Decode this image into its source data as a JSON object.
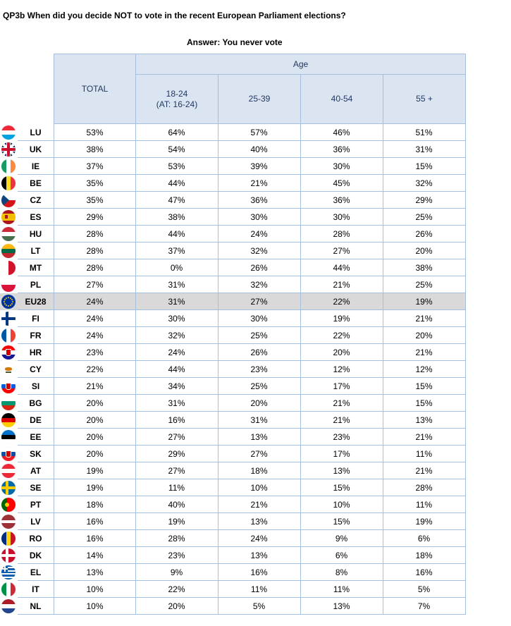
{
  "title": "QP3b When did you decide NOT to vote in the recent European Parliament elections?",
  "subtitle": "Answer: You never vote",
  "header": {
    "age": "Age",
    "total": "TOTAL",
    "cols": [
      "18-24",
      "25-39",
      "40-54",
      "55 +"
    ],
    "col1_sub": "(AT: 16-24)"
  },
  "rows": [
    {
      "code": "LU",
      "flag": "luxembourg-flag-icon",
      "total": "53%",
      "a": "64%",
      "b": "57%",
      "c": "46%",
      "d": "51%"
    },
    {
      "code": "UK",
      "flag": "uk-flag-icon",
      "total": "38%",
      "a": "54%",
      "b": "40%",
      "c": "36%",
      "d": "31%"
    },
    {
      "code": "IE",
      "flag": "ireland-flag-icon",
      "total": "37%",
      "a": "53%",
      "b": "39%",
      "c": "30%",
      "d": "15%"
    },
    {
      "code": "BE",
      "flag": "belgium-flag-icon",
      "total": "35%",
      "a": "44%",
      "b": "21%",
      "c": "45%",
      "d": "32%"
    },
    {
      "code": "CZ",
      "flag": "czech-flag-icon",
      "total": "35%",
      "a": "47%",
      "b": "36%",
      "c": "36%",
      "d": "29%"
    },
    {
      "code": "ES",
      "flag": "spain-flag-icon",
      "total": "29%",
      "a": "38%",
      "b": "30%",
      "c": "30%",
      "d": "25%"
    },
    {
      "code": "HU",
      "flag": "hungary-flag-icon",
      "total": "28%",
      "a": "44%",
      "b": "24%",
      "c": "28%",
      "d": "26%"
    },
    {
      "code": "LT",
      "flag": "lithuania-flag-icon",
      "total": "28%",
      "a": "37%",
      "b": "32%",
      "c": "27%",
      "d": "20%"
    },
    {
      "code": "MT",
      "flag": "malta-flag-icon",
      "total": "28%",
      "a": "0%",
      "b": "26%",
      "c": "44%",
      "d": "38%"
    },
    {
      "code": "PL",
      "flag": "poland-flag-icon",
      "total": "27%",
      "a": "31%",
      "b": "32%",
      "c": "21%",
      "d": "25%"
    },
    {
      "code": "EU28",
      "flag": "eu-flag-icon",
      "total": "24%",
      "a": "31%",
      "b": "27%",
      "c": "22%",
      "d": "19%",
      "highlight": true
    },
    {
      "code": "FI",
      "flag": "finland-flag-icon",
      "total": "24%",
      "a": "30%",
      "b": "30%",
      "c": "19%",
      "d": "21%"
    },
    {
      "code": "FR",
      "flag": "france-flag-icon",
      "total": "24%",
      "a": "32%",
      "b": "25%",
      "c": "22%",
      "d": "20%"
    },
    {
      "code": "HR",
      "flag": "croatia-flag-icon",
      "total": "23%",
      "a": "24%",
      "b": "26%",
      "c": "20%",
      "d": "21%"
    },
    {
      "code": "CY",
      "flag": "cyprus-flag-icon",
      "total": "22%",
      "a": "44%",
      "b": "23%",
      "c": "12%",
      "d": "12%"
    },
    {
      "code": "SI",
      "flag": "slovenia-flag-icon",
      "total": "21%",
      "a": "34%",
      "b": "25%",
      "c": "17%",
      "d": "15%"
    },
    {
      "code": "BG",
      "flag": "bulgaria-flag-icon",
      "total": "20%",
      "a": "31%",
      "b": "20%",
      "c": "21%",
      "d": "15%"
    },
    {
      "code": "DE",
      "flag": "germany-flag-icon",
      "total": "20%",
      "a": "16%",
      "b": "31%",
      "c": "21%",
      "d": "13%"
    },
    {
      "code": "EE",
      "flag": "estonia-flag-icon",
      "total": "20%",
      "a": "27%",
      "b": "13%",
      "c": "23%",
      "d": "21%"
    },
    {
      "code": "SK",
      "flag": "slovakia-flag-icon",
      "total": "20%",
      "a": "29%",
      "b": "27%",
      "c": "17%",
      "d": "11%"
    },
    {
      "code": "AT",
      "flag": "austria-flag-icon",
      "total": "19%",
      "a": "27%",
      "b": "18%",
      "c": "13%",
      "d": "21%"
    },
    {
      "code": "SE",
      "flag": "sweden-flag-icon",
      "total": "19%",
      "a": "11%",
      "b": "10%",
      "c": "15%",
      "d": "28%"
    },
    {
      "code": "PT",
      "flag": "portugal-flag-icon",
      "total": "18%",
      "a": "40%",
      "b": "21%",
      "c": "10%",
      "d": "11%"
    },
    {
      "code": "LV",
      "flag": "latvia-flag-icon",
      "total": "16%",
      "a": "19%",
      "b": "13%",
      "c": "15%",
      "d": "19%"
    },
    {
      "code": "RO",
      "flag": "romania-flag-icon",
      "total": "16%",
      "a": "28%",
      "b": "24%",
      "c": "9%",
      "d": "6%"
    },
    {
      "code": "DK",
      "flag": "denmark-flag-icon",
      "total": "14%",
      "a": "23%",
      "b": "13%",
      "c": "6%",
      "d": "18%"
    },
    {
      "code": "EL",
      "flag": "greece-flag-icon",
      "total": "13%",
      "a": "9%",
      "b": "16%",
      "c": "8%",
      "d": "16%"
    },
    {
      "code": "IT",
      "flag": "italy-flag-icon",
      "total": "10%",
      "a": "22%",
      "b": "11%",
      "c": "11%",
      "d": "5%"
    },
    {
      "code": "NL",
      "flag": "netherlands-flag-icon",
      "total": "10%",
      "a": "20%",
      "b": "5%",
      "c": "13%",
      "d": "7%"
    }
  ],
  "colors": {
    "header_bg": "#dbe5f1",
    "border": "#a7bfde",
    "header_text": "#1f3864",
    "highlight_row": "#d9d9d9"
  }
}
